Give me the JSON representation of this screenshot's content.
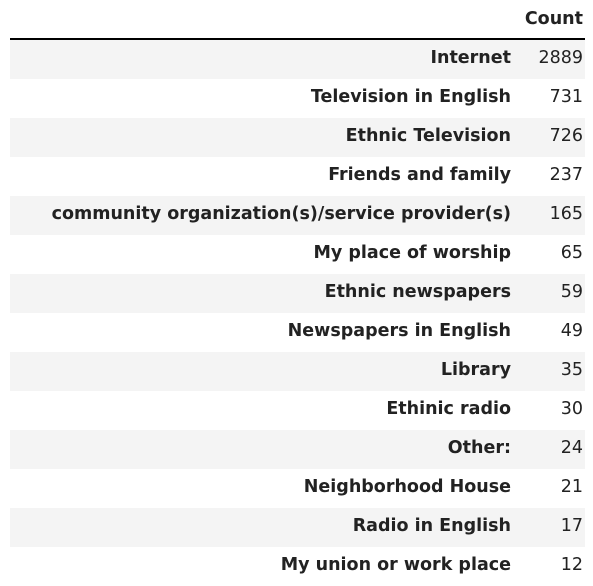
{
  "chart_data": {
    "type": "table",
    "columns": [
      "Count"
    ],
    "rows": [
      {
        "label": "Internet",
        "value": 2889
      },
      {
        "label": "Television in English",
        "value": 731
      },
      {
        "label": "Ethnic Television",
        "value": 726
      },
      {
        "label": "Friends and family",
        "value": 237
      },
      {
        "label": "community organization(s)/service provider(s)",
        "value": 165
      },
      {
        "label": "My place of worship",
        "value": 65
      },
      {
        "label": "Ethnic newspapers",
        "value": 59
      },
      {
        "label": "Newspapers in English",
        "value": 49
      },
      {
        "label": "Library",
        "value": 35
      },
      {
        "label": "Ethinic radio",
        "value": 30
      },
      {
        "label": "Other:",
        "value": 24
      },
      {
        "label": "Neighborhood House",
        "value": 21
      },
      {
        "label": "Radio in English",
        "value": 17
      },
      {
        "label": "My union or work place",
        "value": 12
      }
    ],
    "colors": {
      "row_stripe": "#f4f4f4",
      "header_rule": "#000000",
      "text": "#222222"
    }
  }
}
